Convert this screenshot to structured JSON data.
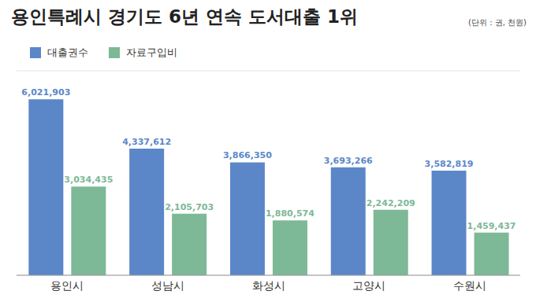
{
  "chart_data": {
    "type": "bar",
    "title": "용인특례시 경기도 6년 연속 도서대출 1위",
    "subtitle": "(단위 : 권, 천원)",
    "categories": [
      "용인시",
      "성남시",
      "화성시",
      "고양시",
      "수원시"
    ],
    "series": [
      {
        "name": "대출권수",
        "color": "#5b87c9",
        "values": [
          6021903,
          4337612,
          3866350,
          3693266,
          3582819
        ],
        "value_labels": [
          "6,021,903",
          "4,337,612",
          "3,866,350",
          "3,693,266",
          "3,582,819"
        ]
      },
      {
        "name": "자료구입비",
        "color": "#7db897",
        "values": [
          3034435,
          2105703,
          1880574,
          2242209,
          1459437
        ],
        "value_labels": [
          "3,034,435",
          "2,105,703",
          "1,880,574",
          "2,242,209",
          "1,459,437"
        ]
      }
    ],
    "ylim": [
      0,
      7000000
    ],
    "yticks": [
      0,
      1000000,
      2000000,
      3000000,
      4000000,
      5000000,
      6000000,
      7000000
    ],
    "grid": true,
    "data_labels": true,
    "tick_labels": "x",
    "legend": "top-left"
  }
}
